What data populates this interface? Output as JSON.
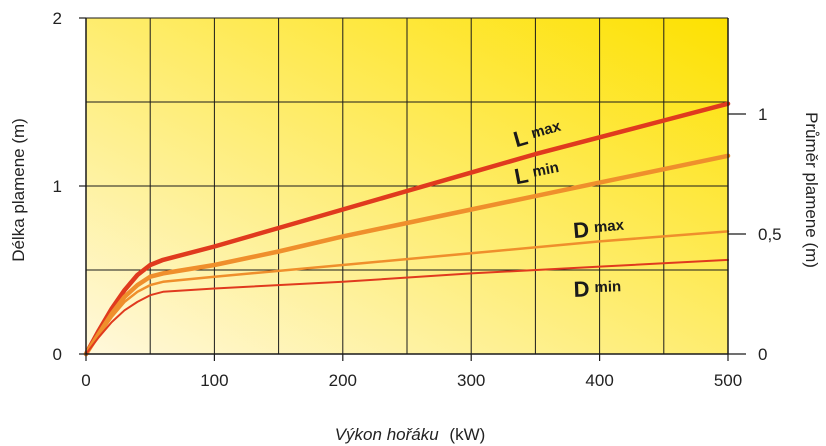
{
  "chart_data": {
    "type": "line",
    "xlabel_italic": "Výkon hořáku",
    "xlabel_unit": "(kW)",
    "ylabel": "Délka plamene  (m)",
    "y2label": "Průměr plamene  (m)",
    "xlim": [
      0,
      500
    ],
    "ylim": [
      0,
      2
    ],
    "y2lim": [
      0,
      1.4
    ],
    "xticks": [
      0,
      100,
      200,
      300,
      400,
      500
    ],
    "xtick_labels": [
      "0",
      "100",
      "200",
      "300",
      "400",
      "500"
    ],
    "yticks": [
      0,
      1,
      2
    ],
    "ytick_labels": [
      "0",
      "1",
      "2"
    ],
    "y2ticks": [
      0,
      0.5,
      1
    ],
    "y2tick_labels": [
      "0",
      "0,5",
      "1"
    ],
    "grid": true,
    "series": [
      {
        "name_main": "L",
        "name_sub": "max",
        "color": "#e03a1e",
        "width": 4.5,
        "axis": "left",
        "x": [
          0,
          10,
          20,
          30,
          40,
          50,
          60,
          100,
          150,
          200,
          250,
          300,
          350,
          400,
          450,
          500
        ],
        "y": [
          0,
          0.14,
          0.27,
          0.38,
          0.47,
          0.53,
          0.56,
          0.64,
          0.75,
          0.86,
          0.97,
          1.08,
          1.19,
          1.29,
          1.39,
          1.49
        ]
      },
      {
        "name_main": "L",
        "name_sub": "min",
        "color": "#ef8f2c",
        "width": 4.5,
        "axis": "left",
        "x": [
          0,
          10,
          20,
          30,
          40,
          50,
          60,
          100,
          150,
          200,
          250,
          300,
          350,
          400,
          450,
          500
        ],
        "y": [
          0,
          0.12,
          0.24,
          0.34,
          0.41,
          0.46,
          0.48,
          0.53,
          0.61,
          0.7,
          0.78,
          0.86,
          0.94,
          1.02,
          1.1,
          1.18
        ]
      },
      {
        "name_main": "D",
        "name_sub": "max",
        "color": "#ef8f2c",
        "width": 2.5,
        "axis": "left",
        "x": [
          0,
          10,
          20,
          30,
          40,
          50,
          60,
          100,
          200,
          300,
          400,
          500
        ],
        "y": [
          0,
          0.11,
          0.22,
          0.31,
          0.37,
          0.41,
          0.43,
          0.46,
          0.53,
          0.6,
          0.67,
          0.73
        ]
      },
      {
        "name_main": "D",
        "name_sub": "min",
        "color": "#e03a1e",
        "width": 2,
        "axis": "left",
        "x": [
          0,
          10,
          20,
          30,
          40,
          50,
          60,
          100,
          200,
          300,
          400,
          500
        ],
        "y": [
          0,
          0.1,
          0.19,
          0.26,
          0.31,
          0.35,
          0.37,
          0.39,
          0.43,
          0.48,
          0.52,
          0.56
        ]
      }
    ],
    "labels": [
      {
        "main": "L",
        "sub": "max",
        "x": 335,
        "y": 1.23,
        "angle": -16
      },
      {
        "main": "L",
        "sub": "min",
        "x": 335,
        "y": 1.01,
        "angle": -11
      },
      {
        "main": "D",
        "sub": "max",
        "x": 380,
        "y": 0.69,
        "angle": -5
      },
      {
        "main": "D",
        "sub": "min",
        "x": 380,
        "y": 0.34,
        "angle": -2
      }
    ],
    "colors": {
      "bg_top_right": "#fde100",
      "bg_bottom_left": "#fff8dc",
      "grid": "#1a1a1a"
    }
  }
}
